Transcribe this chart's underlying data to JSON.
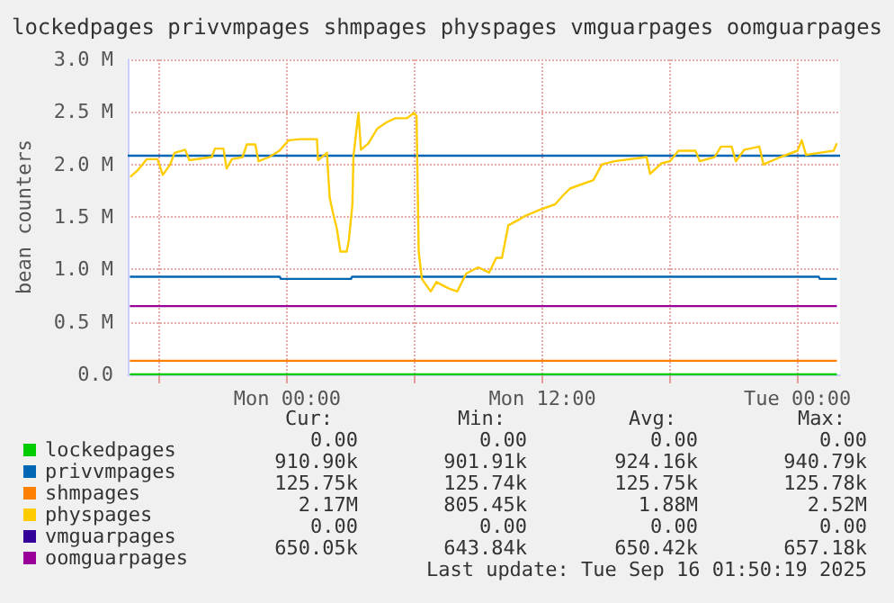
{
  "chart_data": {
    "type": "line",
    "title": "lockedpages privvmpages shmpages physpages vmguarpages oomguarpages",
    "ylabel": "bean counters",
    "xlim": [
      "2025-09-14T16:30",
      "2025-09-16T02:00"
    ],
    "ylim": [
      0,
      3000000
    ],
    "xticks": [
      {
        "value": "2025-09-14T18:00",
        "label": null
      },
      {
        "value": "2025-09-15T00:00",
        "label": "Mon 00:00"
      },
      {
        "value": "2025-09-15T06:00",
        "label": null
      },
      {
        "value": "2025-09-15T12:00",
        "label": "Mon 12:00"
      },
      {
        "value": "2025-09-15T18:00",
        "label": null
      },
      {
        "value": "2025-09-16T00:00",
        "label": "Tue 00:00"
      }
    ],
    "yticks": [
      {
        "value": 0,
        "label": "0.0"
      },
      {
        "value": 500000,
        "label": "0.5 M"
      },
      {
        "value": 1000000,
        "label": "1.0 M"
      },
      {
        "value": 1500000,
        "label": "1.5 M"
      },
      {
        "value": 2000000,
        "label": "2.0 M"
      },
      {
        "value": 2500000,
        "label": "2.5 M"
      },
      {
        "value": 3000000,
        "label": "3.0 M"
      }
    ],
    "grid": true,
    "legend": "bottom left",
    "marker": "none",
    "line_style": "solid",
    "ref_lines": [
      {
        "axis": "y",
        "value": 2080000,
        "color": "#0066b3"
      }
    ],
    "series": [
      {
        "name": "lockedpages",
        "color": "#00cc00",
        "x": [
          "2025-09-14T16:36",
          "2025-09-16T01:51"
        ],
        "values": [
          0,
          0
        ]
      },
      {
        "name": "privvmpages",
        "color": "#0066b3",
        "x": [
          "2025-09-14T16:36",
          "2025-09-14T23:39",
          "2025-09-14T23:42",
          "2025-09-15T03:00",
          "2025-09-15T03:03",
          "2025-09-16T01:00",
          "2025-09-16T01:03",
          "2025-09-16T01:51"
        ],
        "values": [
          930000,
          930000,
          910000,
          910000,
          930000,
          930000,
          910000,
          910000
        ]
      },
      {
        "name": "shmpages",
        "color": "#ff8000",
        "x": [
          "2025-09-14T16:36",
          "2025-09-16T01:51"
        ],
        "values": [
          130000,
          130000
        ]
      },
      {
        "name": "physpages",
        "color": "#ffcc00",
        "x": [
          "2025-09-14T16:37",
          "2025-09-14T16:57",
          "2025-09-14T17:24",
          "2025-09-14T17:54",
          "2025-09-14T18:09",
          "2025-09-14T18:30",
          "2025-09-14T18:42",
          "2025-09-14T19:12",
          "2025-09-14T19:24",
          "2025-09-14T20:27",
          "2025-09-14T20:36",
          "2025-09-14T21:00",
          "2025-09-14T21:09",
          "2025-09-14T21:24",
          "2025-09-14T21:54",
          "2025-09-14T22:06",
          "2025-09-14T22:30",
          "2025-09-14T22:39",
          "2025-09-14T23:09",
          "2025-09-14T23:38",
          "2025-09-15T00:04",
          "2025-09-15T00:36",
          "2025-09-15T01:24",
          "2025-09-15T01:27",
          "2025-09-15T01:52",
          "2025-09-15T02:00",
          "2025-09-15T02:09",
          "2025-09-15T02:20",
          "2025-09-15T02:30",
          "2025-09-15T02:48",
          "2025-09-15T02:54",
          "2025-09-15T03:04",
          "2025-09-15T03:07",
          "2025-09-15T03:21",
          "2025-09-15T03:28",
          "2025-09-15T03:49",
          "2025-09-15T04:14",
          "2025-09-15T04:40",
          "2025-09-15T05:05",
          "2025-09-15T05:38",
          "2025-09-15T05:58",
          "2025-09-15T06:05",
          "2025-09-15T06:11",
          "2025-09-15T06:20",
          "2025-09-15T06:45",
          "2025-09-15T07:01",
          "2025-09-15T07:35",
          "2025-09-15T08:00",
          "2025-09-15T08:25",
          "2025-09-15T08:59",
          "2025-09-15T09:30",
          "2025-09-15T09:50",
          "2025-09-15T10:06",
          "2025-09-15T10:24",
          "2025-09-15T10:57",
          "2025-09-15T11:12",
          "2025-09-15T11:54",
          "2025-09-15T12:36",
          "2025-09-15T13:00",
          "2025-09-15T13:18",
          "2025-09-15T13:42",
          "2025-09-15T14:24",
          "2025-09-15T14:48",
          "2025-09-15T15:24",
          "2025-09-15T16:54",
          "2025-09-15T17:04",
          "2025-09-15T17:36",
          "2025-09-15T18:00",
          "2025-09-15T18:24",
          "2025-09-15T19:12",
          "2025-09-15T19:24",
          "2025-09-15T20:06",
          "2025-09-15T20:24",
          "2025-09-15T20:54",
          "2025-09-15T21:06",
          "2025-09-15T21:30",
          "2025-09-15T22:12",
          "2025-09-15T22:24",
          "2025-09-15T23:12",
          "2025-09-16T00:00",
          "2025-09-16T00:12",
          "2025-09-16T00:24",
          "2025-09-16T01:00",
          "2025-09-16T01:42",
          "2025-09-16T01:51"
        ],
        "values": [
          1880000,
          1940000,
          2050000,
          2050000,
          1900000,
          2000000,
          2110000,
          2140000,
          2040000,
          2070000,
          2150000,
          2150000,
          1960000,
          2050000,
          2070000,
          2190000,
          2190000,
          2030000,
          2070000,
          2130000,
          2230000,
          2240000,
          2240000,
          2040000,
          2110000,
          1680000,
          1540000,
          1390000,
          1170000,
          1170000,
          1280000,
          1620000,
          2080000,
          2490000,
          2140000,
          2200000,
          2340000,
          2400000,
          2440000,
          2440000,
          2490000,
          2460000,
          1170000,
          910000,
          790000,
          880000,
          820000,
          790000,
          960000,
          1020000,
          970000,
          1110000,
          1110000,
          1420000,
          1480000,
          1510000,
          1570000,
          1620000,
          1710000,
          1770000,
          1800000,
          1850000,
          2000000,
          2030000,
          2070000,
          1910000,
          2010000,
          2030000,
          2130000,
          2130000,
          2030000,
          2070000,
          2170000,
          2170000,
          2030000,
          2140000,
          2170000,
          2000000,
          2070000,
          2130000,
          2230000,
          2090000,
          2110000,
          2130000,
          2200000
        ]
      },
      {
        "name": "vmguarpages",
        "color": "#330099"
      },
      {
        "name": "oomguarpages",
        "color": "#990099",
        "x": [
          "2025-09-14T16:36",
          "2025-09-16T01:51"
        ],
        "values": [
          650000,
          650000
        ]
      }
    ],
    "annotations": [
      "Cur:",
      "Min:",
      "Avg:",
      "Max:",
      "0.00",
      "0.00",
      "0.00",
      "0.00",
      "910.90k",
      "901.91k",
      "924.16k",
      "940.79k",
      "125.75k",
      "125.74k",
      "125.75k",
      "125.78k",
      "2.17M",
      "805.45k",
      "1.88M",
      "2.52M",
      "0.00",
      "0.00",
      "0.00",
      "0.00",
      "650.05k",
      "643.84k",
      "650.42k",
      "657.18k",
      "Last update: Tue Sep 16 01:50:19 2025"
    ]
  }
}
